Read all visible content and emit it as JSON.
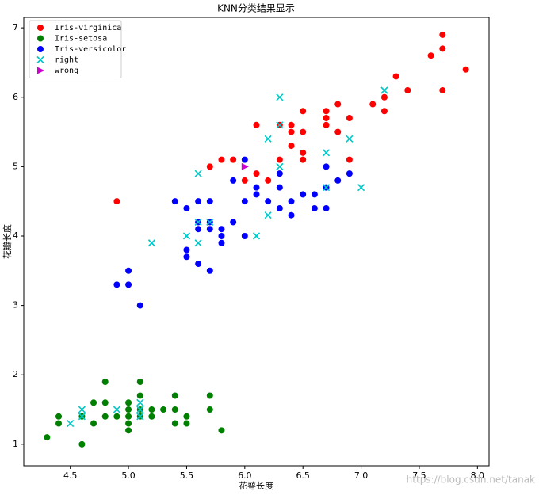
{
  "chart_data": {
    "type": "scatter",
    "title": "KNN分类结果显示",
    "xlabel": "花萼长度",
    "ylabel": "花瓣长度",
    "watermark": "https://blog.csdn.net/tanak",
    "xlim": [
      4.1,
      8.1
    ],
    "ylim": [
      0.69,
      7.15
    ],
    "xticks": [
      4.5,
      {
        "value": 5,
        "label": "5.0"
      },
      5.5,
      {
        "value": 6,
        "label": "6.0"
      },
      6.5,
      {
        "value": 7,
        "label": "7.0"
      },
      7.5,
      {
        "value": 8,
        "label": "8.0"
      }
    ],
    "yticks": [
      1,
      2,
      3,
      4,
      5,
      6,
      7
    ],
    "legend": "upper left",
    "series": [
      {
        "name": "Iris-virginica",
        "color": "#ff0000",
        "marker": "o",
        "x": [
          7.7,
          7.7,
          7.6,
          7.9,
          7.3,
          7.4,
          7.7,
          7.1,
          7.2,
          7.2,
          6.8,
          6.7,
          6.7,
          6.7,
          6.9,
          6.8,
          6.5,
          6.4,
          6.4,
          6.1,
          6.3,
          6.5,
          6.4,
          6.5,
          6.5,
          6.3,
          6.9,
          6.1,
          6.2,
          6.0,
          5.8,
          5.9,
          5.7,
          4.9
        ],
        "values": [
          6.9,
          6.7,
          6.6,
          6.4,
          6.3,
          6.1,
          6.1,
          5.9,
          6.0,
          5.8,
          5.9,
          5.8,
          5.7,
          5.6,
          5.7,
          5.5,
          5.8,
          5.6,
          5.5,
          5.6,
          5.6,
          5.5,
          5.3,
          5.2,
          5.1,
          5.1,
          5.1,
          4.9,
          4.8,
          4.8,
          5.1,
          5.1,
          5.0,
          4.5
        ]
      },
      {
        "name": "Iris-setosa",
        "color": "#008000",
        "marker": "o",
        "x": [
          4.3,
          4.4,
          4.4,
          4.6,
          4.6,
          4.7,
          4.7,
          4.8,
          4.8,
          4.8,
          4.9,
          5.0,
          5.0,
          5.0,
          5.0,
          5.0,
          5.1,
          5.1,
          5.1,
          5.1,
          5.2,
          5.2,
          5.3,
          5.4,
          5.4,
          5.4,
          5.5,
          5.5,
          5.7,
          5.7,
          5.8
        ],
        "values": [
          1.1,
          1.4,
          1.3,
          1.0,
          1.4,
          1.6,
          1.3,
          1.9,
          1.6,
          1.4,
          1.4,
          1.6,
          1.5,
          1.4,
          1.3,
          1.2,
          1.9,
          1.7,
          1.5,
          1.4,
          1.5,
          1.4,
          1.5,
          1.7,
          1.5,
          1.3,
          1.4,
          1.3,
          1.7,
          1.5,
          1.2
        ]
      },
      {
        "name": "Iris-versicolor",
        "color": "#0000ff",
        "marker": "o",
        "x": [
          4.9,
          5.0,
          5.0,
          5.1,
          5.4,
          5.5,
          5.5,
          5.5,
          5.6,
          5.6,
          5.6,
          5.6,
          5.7,
          5.7,
          5.7,
          5.7,
          5.8,
          5.8,
          5.8,
          5.9,
          5.9,
          6.0,
          6.0,
          6.0,
          6.1,
          6.1,
          6.2,
          6.3,
          6.3,
          6.3,
          6.4,
          6.4,
          6.5,
          6.6,
          6.6,
          6.7,
          6.7,
          6.7,
          6.8,
          6.9
        ],
        "values": [
          3.3,
          3.5,
          3.3,
          3.0,
          4.5,
          4.4,
          3.8,
          3.7,
          4.5,
          4.2,
          4.1,
          3.6,
          4.5,
          4.2,
          4.1,
          3.5,
          4.1,
          4.0,
          3.9,
          4.8,
          4.2,
          5.1,
          4.5,
          4.0,
          4.7,
          4.6,
          4.5,
          4.9,
          4.7,
          4.4,
          4.5,
          4.3,
          4.6,
          4.6,
          4.4,
          5.0,
          4.7,
          4.4,
          4.8,
          4.9
        ]
      },
      {
        "name": "right",
        "color": "#00c8c8",
        "marker": "x",
        "x": [
          4.5,
          4.6,
          4.6,
          4.9,
          5.1,
          5.1,
          5.1,
          5.2,
          5.5,
          5.6,
          5.6,
          5.6,
          5.7,
          6.1,
          6.2,
          6.2,
          6.3,
          6.3,
          6.3,
          6.7,
          6.7,
          6.9,
          7.0,
          7.2
        ],
        "values": [
          1.3,
          1.5,
          1.4,
          1.5,
          1.6,
          1.5,
          1.4,
          3.9,
          4.0,
          4.9,
          4.2,
          3.9,
          4.2,
          4.0,
          5.4,
          4.3,
          6.0,
          5.6,
          5.0,
          5.2,
          4.7,
          5.4,
          4.7,
          6.1
        ]
      },
      {
        "name": "wrong",
        "color": "#d000d0",
        "marker": ">",
        "x": [
          6.0
        ],
        "values": [
          5.0
        ]
      }
    ]
  }
}
